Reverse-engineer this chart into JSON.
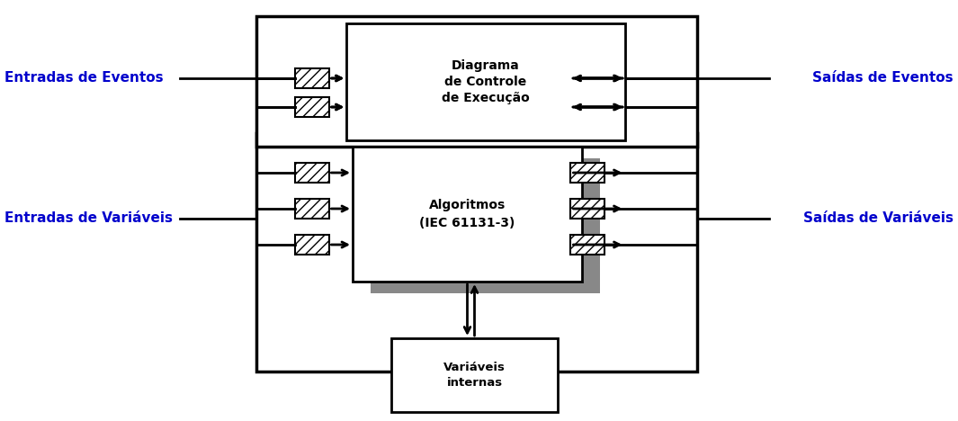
{
  "fig_width": 10.65,
  "fig_height": 4.68,
  "bg_color": "#ffffff",
  "text_color": "#0000cc",
  "box_color": "#000000",
  "label_entradas_eventos": "Entradas de Eventos",
  "label_saidas_eventos": "Saídas de Eventos",
  "label_entradas_variaveis": "Entradas de Variáveis",
  "label_saidas_variaveis": "Saídas de Variáveis",
  "label_ecd": "Diagrama\nde Controle\nde Execução",
  "label_alg": "Algoritmos\n(IEC 61131-3)",
  "label_var_int": "Variáveis\ninternas",
  "hatch_pattern": "///",
  "shadow_color": "#888888"
}
